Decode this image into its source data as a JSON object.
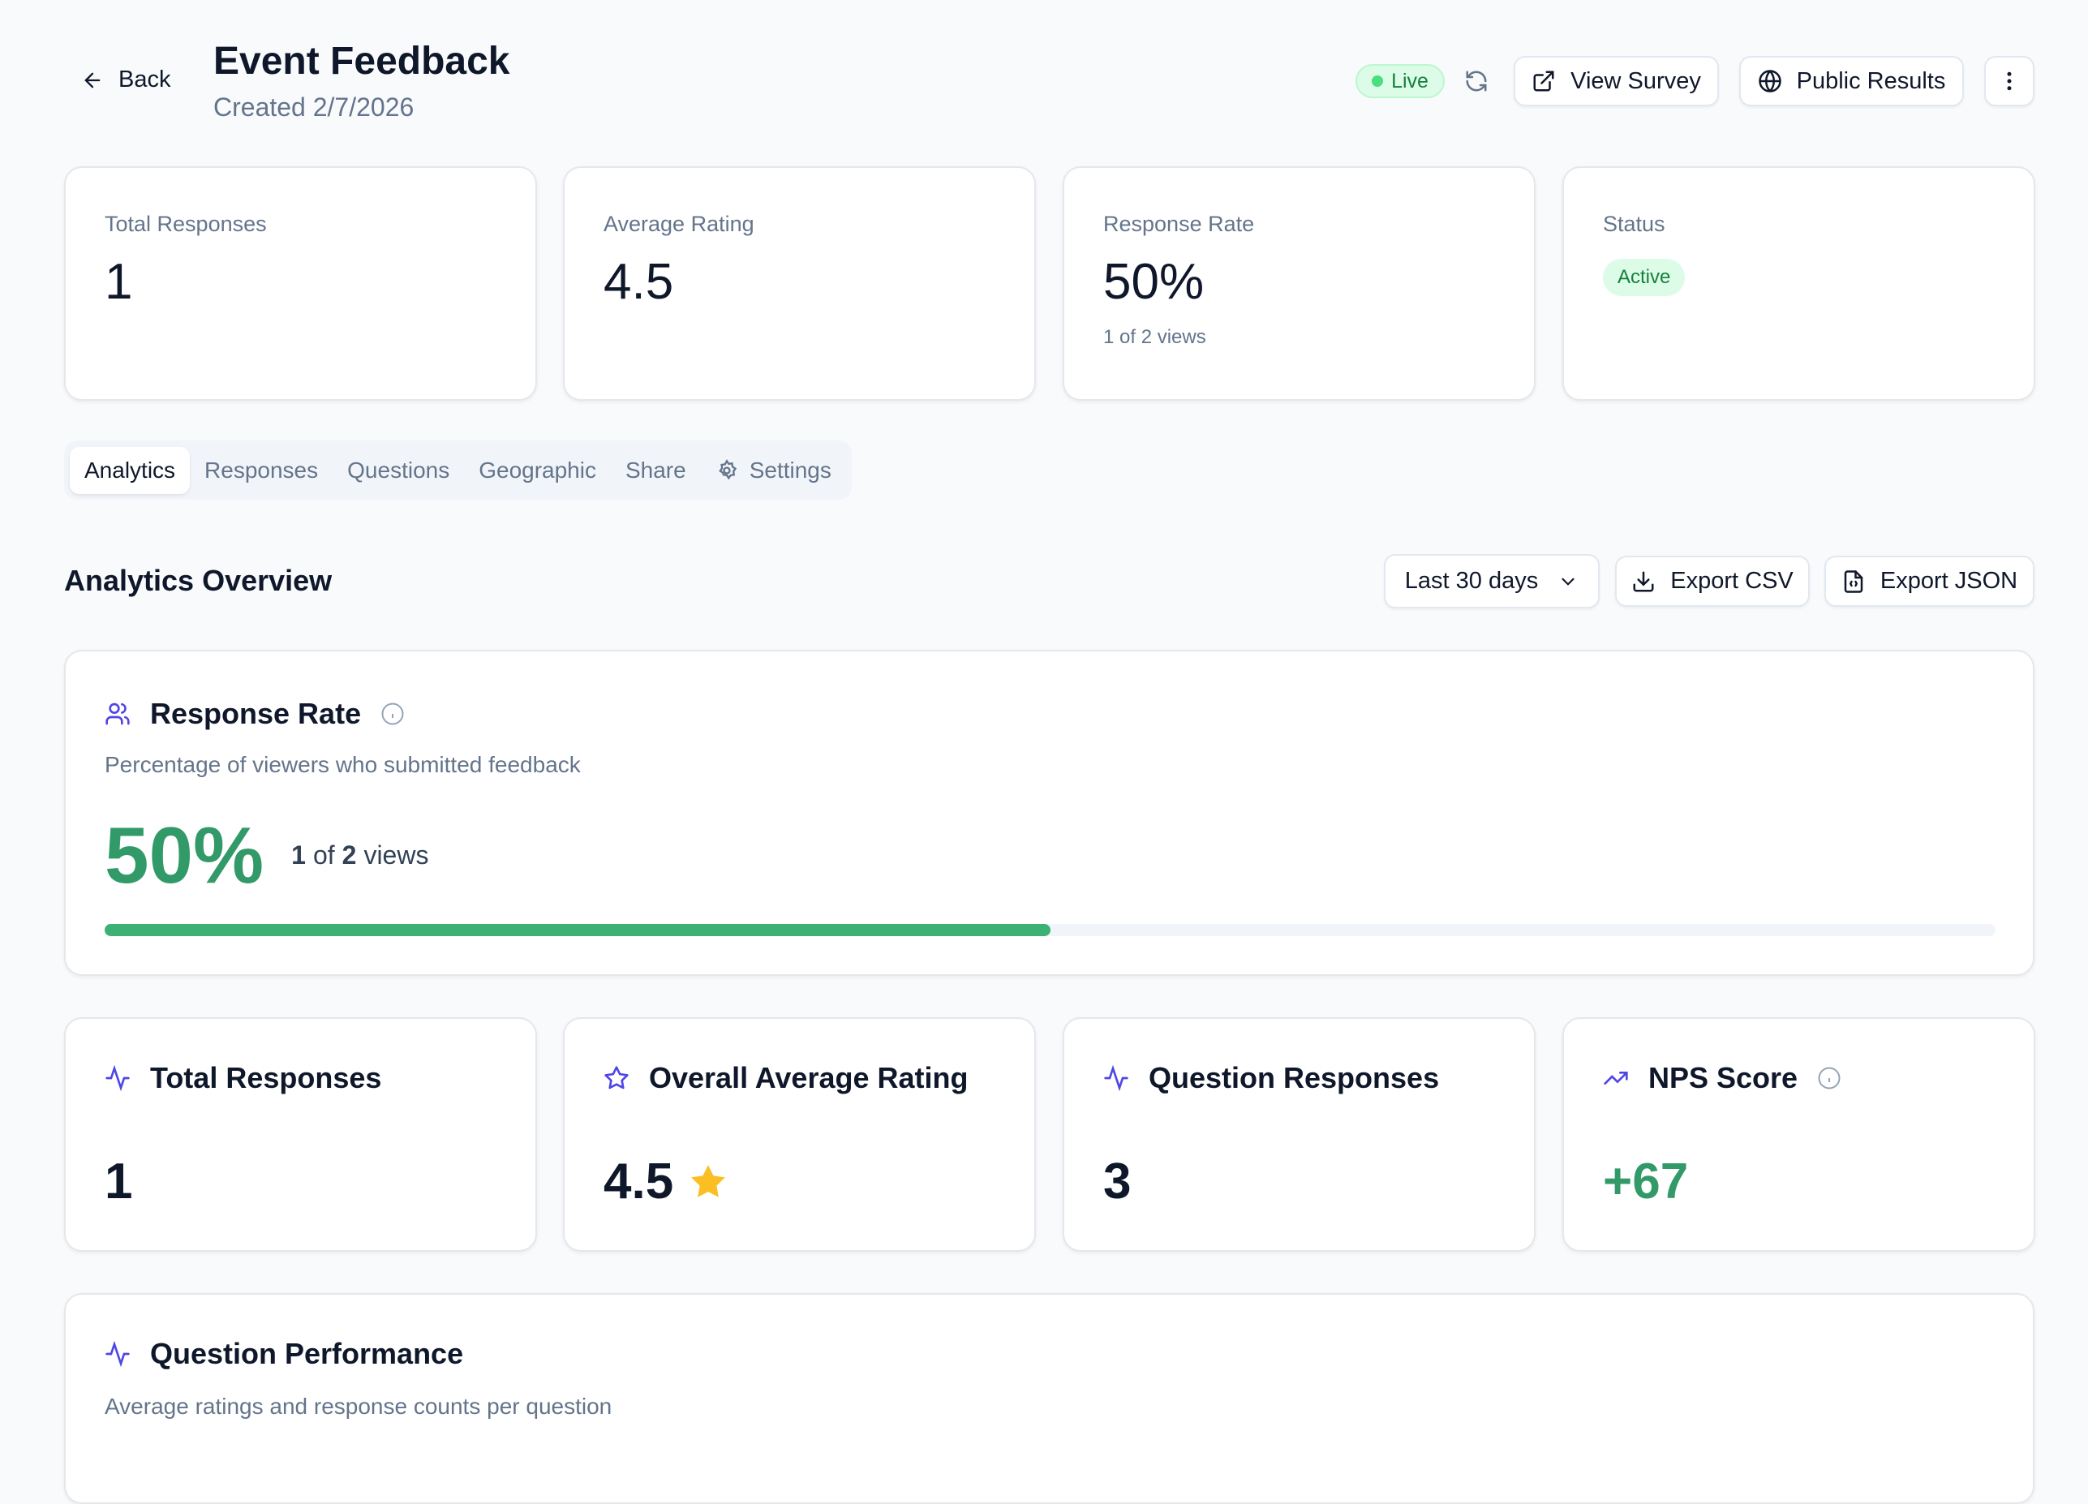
{
  "header": {
    "back_label": "Back",
    "title": "Event Feedback",
    "created": "Created 2/7/2026",
    "live_label": "Live",
    "view_survey_label": "View Survey",
    "public_results_label": "Public Results"
  },
  "stats": [
    {
      "label": "Total Responses",
      "value": "1"
    },
    {
      "label": "Average Rating",
      "value": "4.5"
    },
    {
      "label": "Response Rate",
      "value": "50%",
      "sub": "1 of 2 views"
    },
    {
      "label": "Status",
      "badge": "Active"
    }
  ],
  "tabs": [
    {
      "label": "Analytics"
    },
    {
      "label": "Responses"
    },
    {
      "label": "Questions"
    },
    {
      "label": "Geographic"
    },
    {
      "label": "Share"
    },
    {
      "label": "Settings"
    }
  ],
  "overview": {
    "title": "Analytics Overview",
    "range": "Last 30 days",
    "export_csv": "Export CSV",
    "export_json": "Export JSON"
  },
  "response_rate": {
    "title": "Response Rate",
    "subtitle": "Percentage of viewers who submitted feedback",
    "value": "50%",
    "count": "1",
    "of": "of",
    "total": "2",
    "views": "views",
    "progress": 0.5
  },
  "metrics": [
    {
      "title": "Total Responses",
      "value": "1",
      "icon": "activity-icon"
    },
    {
      "title": "Overall Average Rating",
      "value": "4.5",
      "icon": "star-icon"
    },
    {
      "title": "Question Responses",
      "value": "3",
      "icon": "activity-icon"
    },
    {
      "title": "NPS Score",
      "value": "+67",
      "icon": "trending-up-icon"
    }
  ],
  "question_performance": {
    "title": "Question Performance",
    "subtitle": "Average ratings and response counts per question"
  },
  "colors": {
    "accent": "#4f46e5",
    "green": "#329a68",
    "progress": "#3bb273",
    "star": "#fbbf24"
  }
}
